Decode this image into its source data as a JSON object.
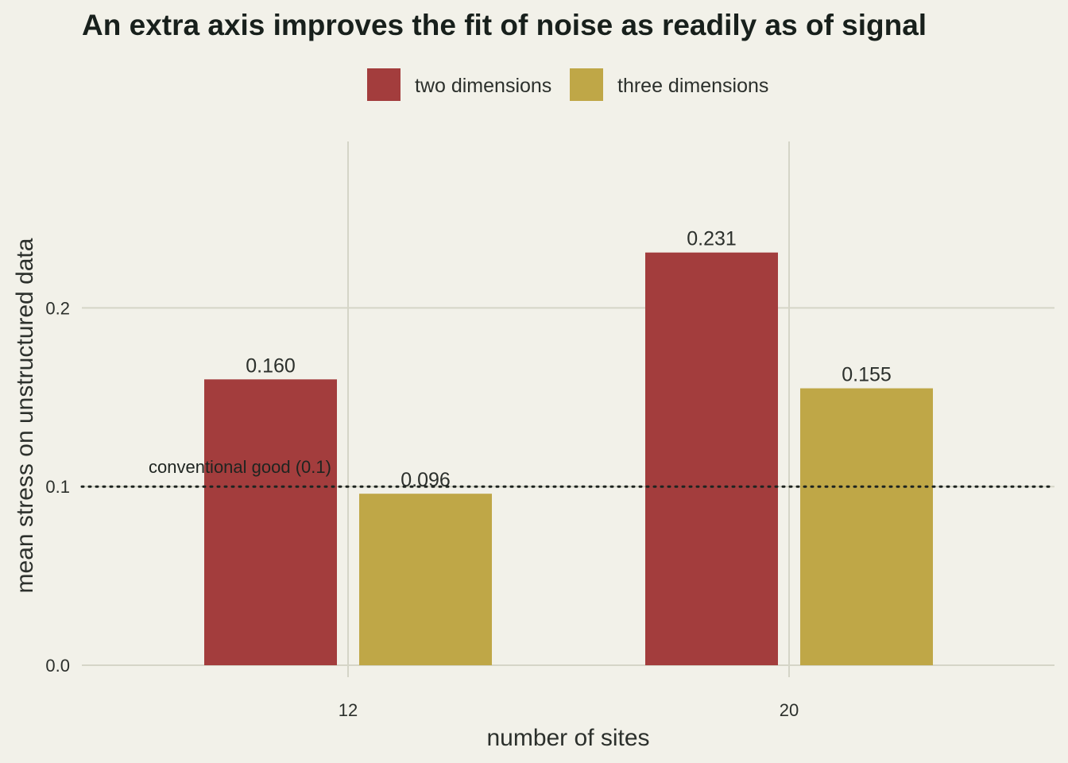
{
  "chart_data": {
    "type": "bar",
    "title": "An extra axis improves the fit of noise as readily as of signal",
    "xlabel": "number of sites",
    "ylabel": "mean stress on unstructured data",
    "categories": [
      "12",
      "20"
    ],
    "series": [
      {
        "name": "two dimensions",
        "color": "#a33d3d",
        "values": [
          0.16,
          0.231
        ],
        "labels": [
          "0.160",
          "0.231"
        ]
      },
      {
        "name": "three dimensions",
        "color": "#bfa747",
        "values": [
          0.096,
          0.155
        ],
        "labels": [
          "0.096",
          "0.155"
        ]
      }
    ],
    "ylim": [
      0,
      0.265
    ],
    "yticks": [
      0.0,
      0.1,
      0.2
    ],
    "ytick_labels": [
      "0.0",
      "0.1",
      "0.2"
    ],
    "reference_line": {
      "value": 0.1,
      "label": "conventional good (0.1)",
      "style": "dotted"
    },
    "legend_position": "top",
    "grid": true
  }
}
